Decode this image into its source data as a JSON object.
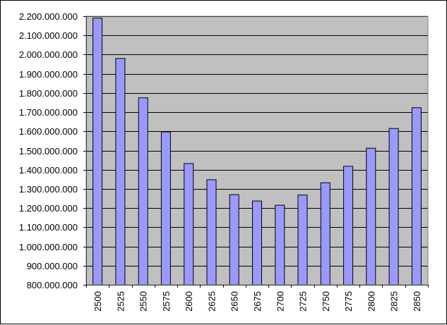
{
  "chart_data": {
    "type": "bar",
    "categories": [
      "2500",
      "2525",
      "2550",
      "2575",
      "2600",
      "2625",
      "2650",
      "2675",
      "2700",
      "2725",
      "2750",
      "2775",
      "2800",
      "2825",
      "2850"
    ],
    "values": [
      2190000000,
      1980000000,
      1775000000,
      1597000000,
      1432000000,
      1348000000,
      1270000000,
      1237000000,
      1215000000,
      1268000000,
      1332000000,
      1418000000,
      1512000000,
      1615000000,
      1723000000
    ],
    "ylim": [
      800000000,
      2200000000
    ],
    "ytick_step": 100000000,
    "yticks": [
      "800.000.000",
      "900.000.000",
      "1.000.000.000",
      "1.100.000.000",
      "1.200.000.000",
      "1.300.000.000",
      "1.400.000.000",
      "1.500.000.000",
      "1.600.000.000",
      "1.700.000.000",
      "1.800.000.000",
      "1.900.000.000",
      "2.000.000.000",
      "2.100.000.000",
      "2.200.000.000"
    ],
    "title": "",
    "xlabel": "",
    "ylabel": "",
    "grid": true,
    "legend": "none",
    "colors": {
      "bar_fill": "#9999ff",
      "bar_stroke": "#000000",
      "plot_background": "#c0c0c0",
      "gridline": "#000000"
    }
  }
}
